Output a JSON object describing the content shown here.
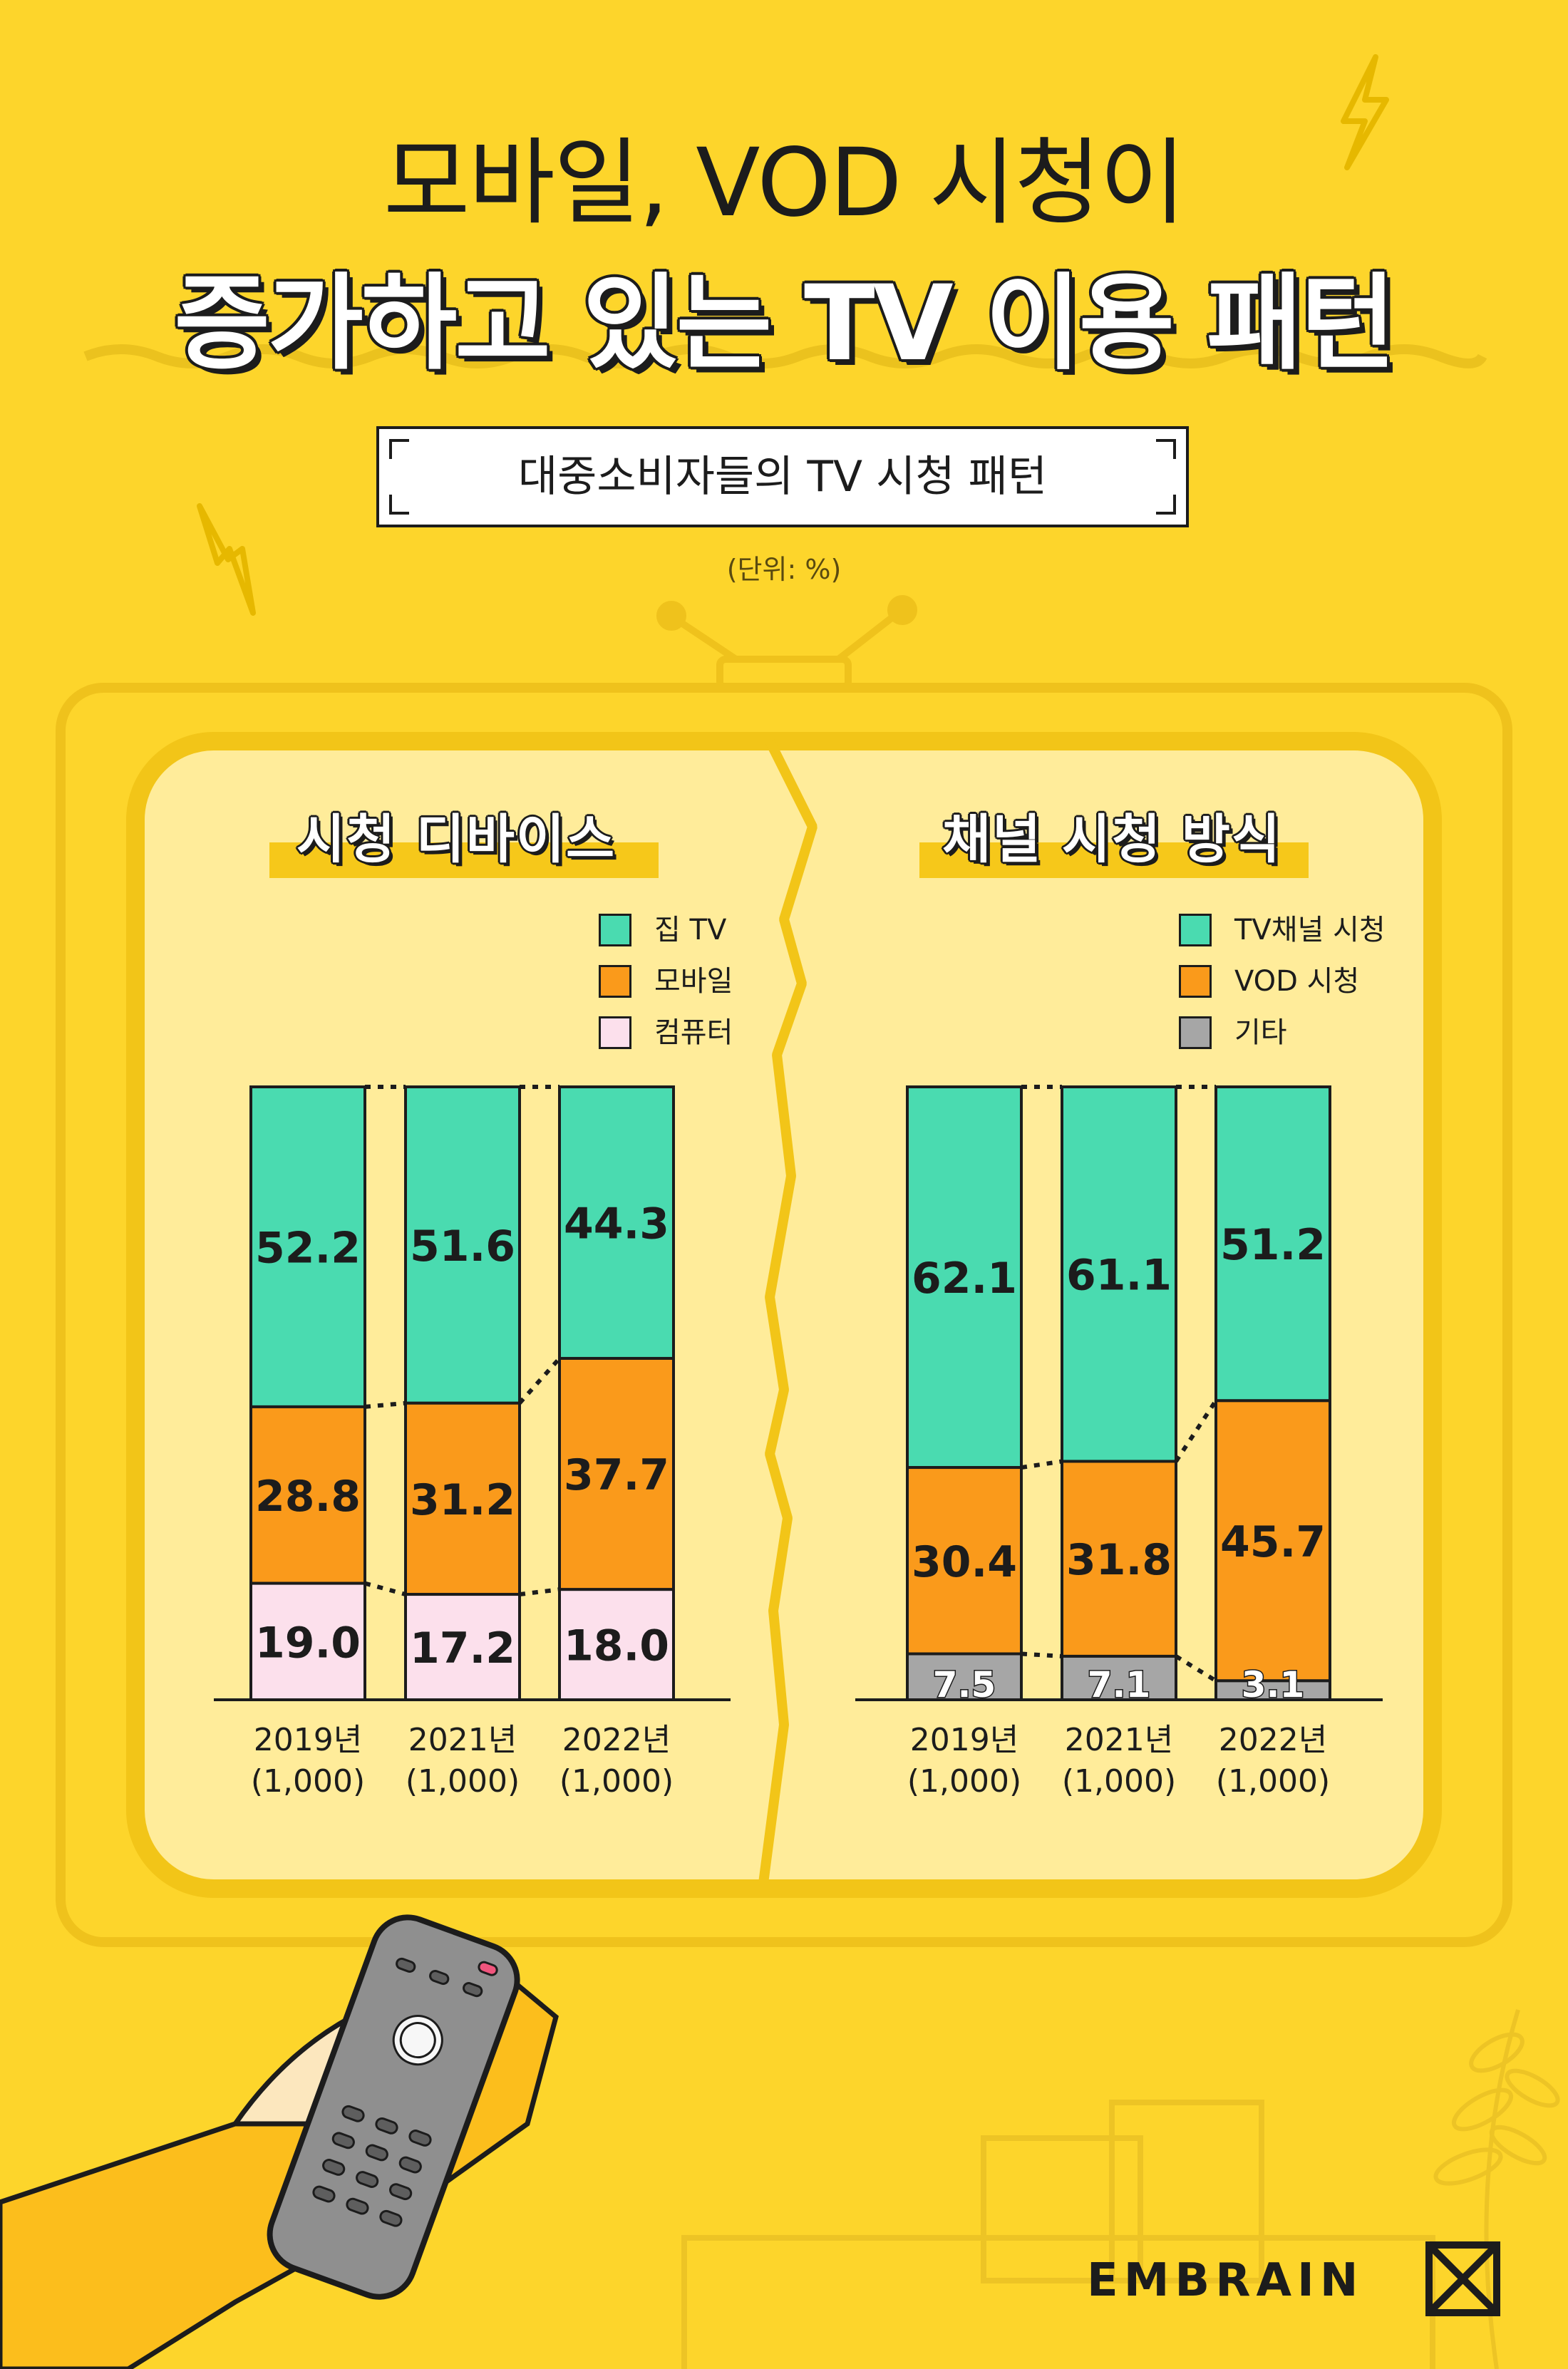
{
  "header": {
    "title_line1": "모바일, VOD 시청이",
    "title_line2": "증가하고 있는 TV 이용 패턴",
    "subtitle": "대중소비자들의 TV 시청 패턴",
    "unit": "(단위: %)"
  },
  "colors": {
    "background": "#FDD52B",
    "screen": "#FFEC9A",
    "home_tv": "#4ADBB0",
    "mobile": "#FA9A1B",
    "computer": "#FCE0EC",
    "tv_channel": "#4ADBB0",
    "vod": "#FA9A1B",
    "other": "#A6A6A6"
  },
  "chart_data": [
    {
      "type": "bar",
      "stacked": true,
      "title": "시청 디바이스",
      "categories": [
        "2019년",
        "2021년",
        "2022년"
      ],
      "category_notes": [
        "(1,000)",
        "(1,000)",
        "(1,000)"
      ],
      "series": [
        {
          "name": "집 TV",
          "values": [
            52.2,
            51.6,
            44.3
          ],
          "color": "#4ADBB0"
        },
        {
          "name": "모바일",
          "values": [
            28.8,
            31.2,
            37.7
          ],
          "color": "#FA9A1B"
        },
        {
          "name": "컴퓨터",
          "values": [
            19.0,
            17.2,
            18.0
          ],
          "color": "#FCE0EC"
        }
      ],
      "value_labels": [
        [
          "52.2",
          "51.6",
          "44.3"
        ],
        [
          "28.8",
          "31.2",
          "37.7"
        ],
        [
          "19.0",
          "17.2",
          "18.0"
        ]
      ],
      "ylim": [
        0,
        100
      ],
      "legend_position": "top-right",
      "grid": false
    },
    {
      "type": "bar",
      "stacked": true,
      "title": "채널 시청 방식",
      "categories": [
        "2019년",
        "2021년",
        "2022년"
      ],
      "category_notes": [
        "(1,000)",
        "(1,000)",
        "(1,000)"
      ],
      "series": [
        {
          "name": "TV채널 시청",
          "values": [
            62.1,
            61.1,
            51.2
          ],
          "color": "#4ADBB0"
        },
        {
          "name": "VOD 시청",
          "values": [
            30.4,
            31.8,
            45.7
          ],
          "color": "#FA9A1B"
        },
        {
          "name": "기타",
          "values": [
            7.5,
            7.1,
            3.1
          ],
          "color": "#A6A6A6"
        }
      ],
      "value_labels": [
        [
          "62.1",
          "61.1",
          "51.2"
        ],
        [
          "30.4",
          "31.8",
          "45.7"
        ],
        [
          "7.5",
          "7.1",
          "3.1"
        ]
      ],
      "ylim": [
        0,
        100
      ],
      "legend_position": "top-right",
      "grid": false
    }
  ],
  "footer": {
    "brand": "EMBRAIN"
  },
  "icons": [
    "lightning-icon",
    "remote-control-icon",
    "tv-antenna-icon",
    "embrain-logo-icon"
  ]
}
